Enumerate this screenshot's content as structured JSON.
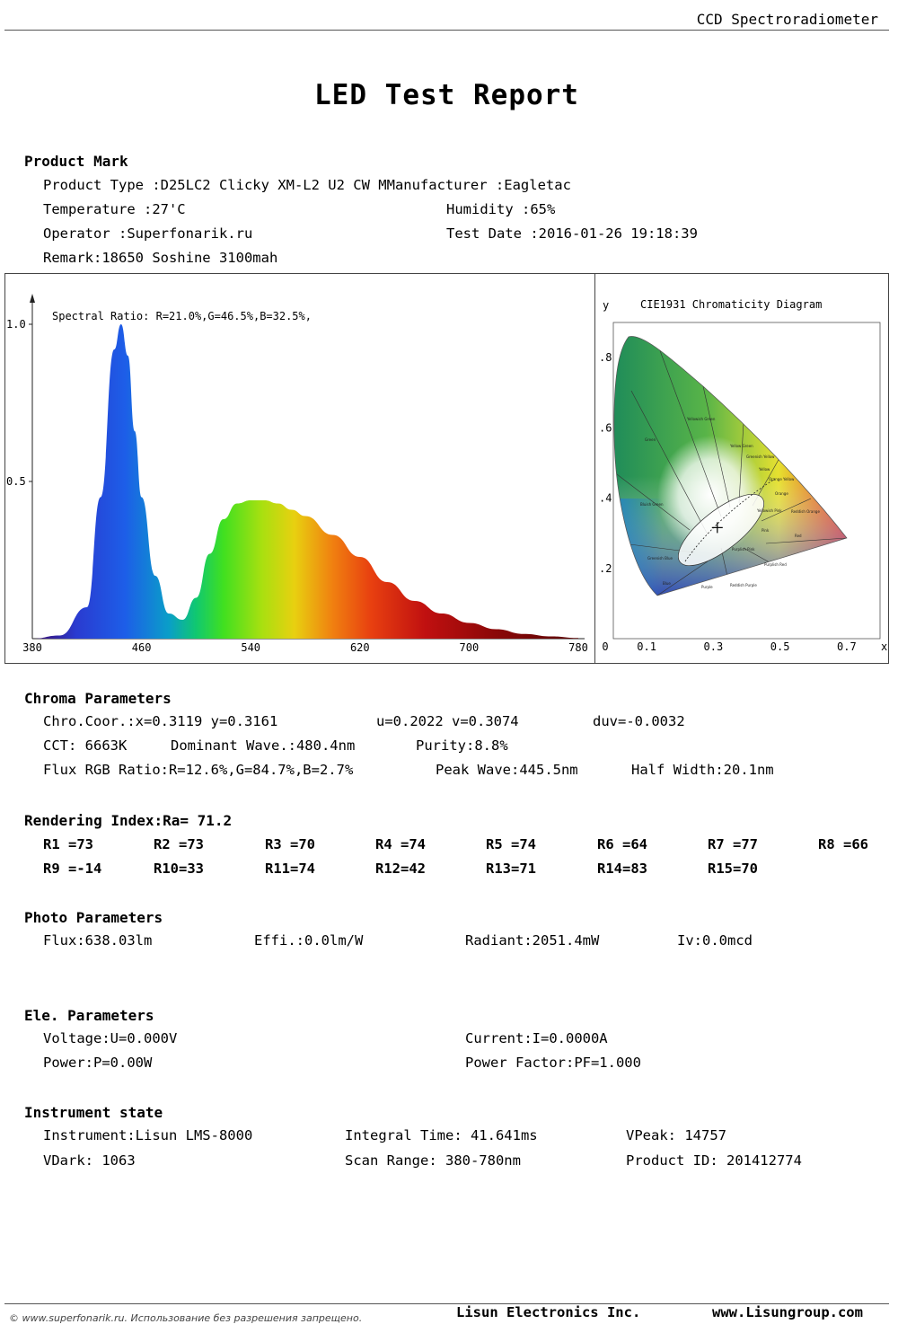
{
  "header": {
    "instrument_type": "CCD Spectroradiometer"
  },
  "report_title": "LED Test Report",
  "product_mark": {
    "heading": "Product Mark",
    "product_type": "Product Type :D25LC2 Clicky XM-L2 U2 CW M",
    "manufacturer": "Manufacturer :Eagletac",
    "temperature": "Temperature :27'C",
    "humidity": "Humidity :65%",
    "operator": "Operator :Superfonarik.ru",
    "test_date": "Test Date :2016-01-26 19:18:39",
    "remark": "Remark:18650 Soshine 3100mah"
  },
  "spectrum": {
    "ratio_label": "Spectral Ratio:  R=21.0%,G=46.5%,B=32.5%,",
    "y_ticks": [
      "1.0",
      "0.5"
    ],
    "x_ticks": [
      "380",
      "460",
      "540",
      "620",
      "700",
      "780"
    ]
  },
  "cie": {
    "title": "CIE1931 Chromaticity Diagram",
    "y_label": "y",
    "x_label": "x",
    "y_ticks": [
      ".8",
      ".6",
      ".4",
      ".2"
    ],
    "x_ticks": [
      "0",
      "0.1",
      "0.3",
      "0.5",
      "0.7"
    ],
    "region_labels": [
      "Yellowish Green",
      "Green",
      "Yellow Green",
      "Greenish Yellow",
      "Yellow",
      "Orange Yellow",
      "Orange",
      "Reddish Orange",
      "Yellowish Pink",
      "Pink",
      "Red",
      "Bluish Green",
      "Greenish Blue",
      "Purplish Pink",
      "Purplish Red",
      "Reddish Purple",
      "Purple",
      "Blue"
    ]
  },
  "chart_data": [
    {
      "type": "area",
      "title": "",
      "xlabel": "",
      "ylabel": "",
      "annotation": "Spectral Ratio:  R=21.0%,G=46.5%,B=32.5%,",
      "x": [
        380,
        400,
        420,
        430,
        440,
        445,
        450,
        455,
        460,
        470,
        480,
        490,
        500,
        510,
        520,
        530,
        540,
        550,
        560,
        570,
        580,
        600,
        620,
        640,
        660,
        680,
        700,
        720,
        740,
        760,
        780
      ],
      "series": [
        {
          "values": [
            0.0,
            0.01,
            0.1,
            0.45,
            0.92,
            1.0,
            0.9,
            0.66,
            0.45,
            0.2,
            0.08,
            0.06,
            0.13,
            0.27,
            0.38,
            0.43,
            0.44,
            0.44,
            0.43,
            0.41,
            0.39,
            0.33,
            0.26,
            0.18,
            0.12,
            0.08,
            0.05,
            0.03,
            0.015,
            0.007,
            0.002
          ]
        }
      ],
      "xlim": [
        380,
        780
      ],
      "ylim": [
        0,
        1.0
      ],
      "x_ticks": [
        380,
        460,
        540,
        620,
        700,
        780
      ],
      "y_ticks": [
        0.5,
        1.0
      ]
    },
    {
      "type": "scatter",
      "title": "CIE1931 Chromaticity Diagram",
      "xlabel": "x",
      "ylabel": "y",
      "x": [
        0.3119
      ],
      "y": [
        0.3161
      ],
      "xlim": [
        0,
        0.8
      ],
      "ylim": [
        0,
        0.9
      ]
    }
  ],
  "chroma": {
    "heading": "Chroma Parameters",
    "chro_coor": "Chro.Coor.:x=0.3119  y=0.3161",
    "uv": "u=0.2022  v=0.3074",
    "duv": "duv=-0.0032",
    "cct": "CCT: 6663K",
    "dominant": "Dominant Wave.:480.4nm",
    "purity": "Purity:8.8%",
    "flux_rgb": "Flux RGB Ratio:R=12.6%,G=84.7%,B=2.7%",
    "peak": "Peak Wave:445.5nm",
    "half_width": "Half Width:20.1nm"
  },
  "rendering": {
    "heading": "Rendering Index:Ra= 71.2",
    "row1": [
      "R1 =73",
      "R2 =73",
      "R3 =70",
      "R4 =74",
      "R5 =74",
      "R6 =64",
      "R7 =77",
      "R8 =66"
    ],
    "row2": [
      "R9 =-14",
      "R10=33",
      "R11=74",
      "R12=42",
      "R13=71",
      "R14=83",
      "R15=70"
    ]
  },
  "photo": {
    "heading": "Photo Parameters",
    "flux": "Flux:638.03lm",
    "effi": "Effi.:0.0lm/W",
    "radiant": "Radiant:2051.4mW",
    "iv": "Iv:0.0mcd"
  },
  "ele": {
    "heading": "Ele. Parameters",
    "voltage": "Voltage:U=0.000V",
    "current": "Current:I=0.0000A",
    "power": "Power:P=0.00W",
    "pf": "Power Factor:PF=1.000"
  },
  "instrument": {
    "heading": "Instrument state",
    "instrument": "Instrument:Lisun LMS-8000",
    "integral": "Integral Time: 41.641ms",
    "vpeak": "VPeak: 14757",
    "vdark": "VDark: 1063",
    "scan": "Scan Range: 380-780nm",
    "product_id": "Product ID: 201412774"
  },
  "footer": {
    "copyright": "© www.superfonarik.ru. Использование без разрешения запрещено.",
    "company": "Lisun Electronics Inc.",
    "website": "www.Lisungroup.com"
  }
}
